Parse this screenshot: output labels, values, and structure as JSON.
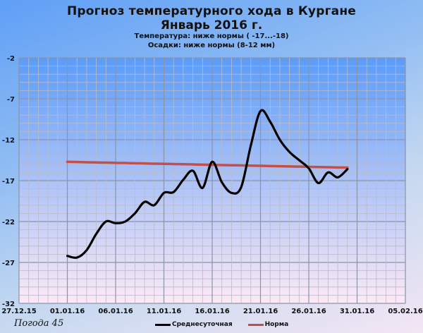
{
  "chart_data": {
    "type": "line",
    "title": "Прогноз температурного хода в Кургане",
    "subtitle": "Январь 2016 г.",
    "annotations": [
      "Температура: ниже нормы ( -17...-18)",
      "Осадки: ниже нормы (8-12 мм)"
    ],
    "xlabel": "",
    "ylabel": "",
    "ylim": [
      -32,
      -2
    ],
    "yticks": [
      -2,
      -7,
      -12,
      -17,
      -22,
      -27,
      -32
    ],
    "xticks": [
      "27.12.15",
      "01.01.16",
      "06.01.16",
      "11.01.16",
      "16.01.16",
      "21.01.16",
      "26.01.16",
      "31.01.16",
      "05.02.16"
    ],
    "xrange_days": [
      0,
      40
    ],
    "grid": true,
    "legend_position": "bottom",
    "x": [
      "01.01.16",
      "02.01.16",
      "03.01.16",
      "04.01.16",
      "05.01.16",
      "06.01.16",
      "07.01.16",
      "08.01.16",
      "09.01.16",
      "10.01.16",
      "11.01.16",
      "12.01.16",
      "13.01.16",
      "14.01.16",
      "15.01.16",
      "16.01.16",
      "17.01.16",
      "18.01.16",
      "19.01.16",
      "20.01.16",
      "21.01.16",
      "22.01.16",
      "23.01.16",
      "24.01.16",
      "25.01.16",
      "26.01.16",
      "27.01.16",
      "28.01.16",
      "29.01.16",
      "30.01.16"
    ],
    "x_day_offset": [
      5,
      6,
      7,
      8,
      9,
      10,
      11,
      12,
      13,
      14,
      15,
      16,
      17,
      18,
      19,
      20,
      21,
      22,
      23,
      24,
      25,
      26,
      27,
      28,
      29,
      30,
      31,
      32,
      33,
      34
    ],
    "series": [
      {
        "name": "Среднесуточная",
        "color": "#000000",
        "values": [
          -26.2,
          -26.4,
          -25.5,
          -23.5,
          -22.0,
          -22.2,
          -22.0,
          -21.0,
          -19.6,
          -20.0,
          -18.5,
          -18.4,
          -16.9,
          -15.8,
          -17.9,
          -14.7,
          -17.2,
          -18.5,
          -17.8,
          -12.7,
          -8.5,
          -9.8,
          -12.0,
          -13.5,
          -14.5,
          -15.5,
          -17.3,
          -16.0,
          -16.6,
          -15.6
        ]
      },
      {
        "name": "Норма",
        "color": "#c0504d",
        "values": [
          -14.7,
          -14.73,
          -14.76,
          -14.78,
          -14.8,
          -14.83,
          -14.85,
          -14.88,
          -14.9,
          -14.93,
          -14.95,
          -14.97,
          -15.0,
          -15.02,
          -15.05,
          -15.07,
          -15.1,
          -15.12,
          -15.14,
          -15.17,
          -15.19,
          -15.22,
          -15.24,
          -15.27,
          -15.29,
          -15.31,
          -15.34,
          -15.36,
          -15.39,
          -15.41
        ]
      }
    ]
  },
  "brand": "Погода 45",
  "colors": {
    "plot_top": "#5b9cf8",
    "plot_bottom": "#fde9f6",
    "grid_major": "#8a94a6",
    "grid_minor": "#b8bcc6"
  }
}
